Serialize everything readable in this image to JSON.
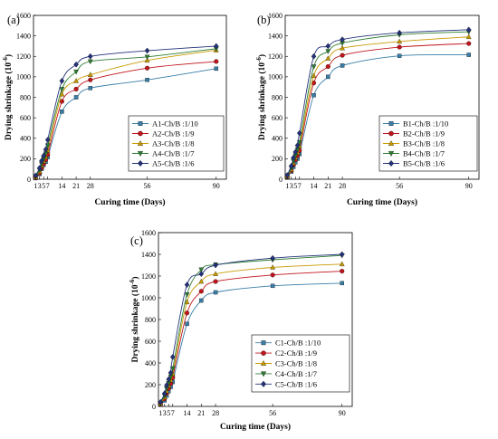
{
  "colors": {
    "series_1": "#3a7ea8",
    "series_2": "#c0141c",
    "series_3": "#c89a00",
    "series_4": "#2e7d32",
    "series_5": "#23327a"
  },
  "markers": [
    "square",
    "circle",
    "triangle-up",
    "triangle-down",
    "diamond"
  ],
  "chart_data": [
    {
      "type": "line",
      "panel_label": "(a)",
      "xlabel": "Curing time (Days)",
      "ylabel": "Drying shrinkage (10",
      "ylabel_sup": "-6",
      "ylabel_end": ")",
      "xlim": [
        0,
        95
      ],
      "ylim": [
        0,
        1600
      ],
      "xticks": [
        1,
        3,
        5,
        7,
        14,
        21,
        28,
        56,
        90
      ],
      "yticks": [
        0,
        200,
        400,
        600,
        800,
        1000,
        1200,
        1400,
        1600
      ],
      "legend_position": "lower-right",
      "x": [
        1,
        3,
        4,
        5,
        6,
        7,
        14,
        21,
        28,
        56,
        90
      ],
      "series": [
        {
          "name": "A1-Ch/B :1/10",
          "values": [
            10,
            50,
            100,
            140,
            170,
            215,
            660,
            800,
            890,
            970,
            1080
          ]
        },
        {
          "name": "A2-Ch/B :1/9",
          "values": [
            15,
            60,
            110,
            150,
            190,
            240,
            760,
            880,
            970,
            1085,
            1150
          ]
        },
        {
          "name": "A3-Ch/B :1/8",
          "values": [
            20,
            75,
            135,
            175,
            215,
            280,
            830,
            960,
            1020,
            1160,
            1260
          ]
        },
        {
          "name": "A4-Ch/B :1/7",
          "values": [
            28,
            90,
            150,
            200,
            250,
            330,
            880,
            1050,
            1150,
            1195,
            1275
          ]
        },
        {
          "name": "A5-Ch/B :1/6",
          "values": [
            35,
            110,
            180,
            230,
            290,
            385,
            960,
            1120,
            1200,
            1255,
            1300
          ]
        }
      ]
    },
    {
      "type": "line",
      "panel_label": "(b)",
      "xlabel": "Curing time (Days)",
      "ylabel": "Drying shrinkage (10",
      "ylabel_sup": "-6",
      "ylabel_end": ")",
      "xlim": [
        0,
        95
      ],
      "ylim": [
        0,
        1600
      ],
      "xticks": [
        1,
        3,
        5,
        7,
        14,
        21,
        28,
        56,
        90
      ],
      "yticks": [
        0,
        200,
        400,
        600,
        800,
        1000,
        1200,
        1400,
        1600
      ],
      "legend_position": "lower-right",
      "x": [
        1,
        3,
        4,
        5,
        6,
        7,
        14,
        21,
        28,
        56,
        90
      ],
      "series": [
        {
          "name": "B1-Ch/B :1/10",
          "values": [
            20,
            75,
            120,
            165,
            200,
            245,
            820,
            1000,
            1110,
            1205,
            1215
          ]
        },
        {
          "name": "B2-Ch/B :1/9",
          "values": [
            25,
            85,
            140,
            190,
            230,
            280,
            940,
            1100,
            1210,
            1290,
            1325
          ]
        },
        {
          "name": "B3-Ch/B :1/8",
          "values": [
            30,
            95,
            160,
            210,
            260,
            320,
            1010,
            1180,
            1280,
            1345,
            1390
          ]
        },
        {
          "name": "B4-Ch/B :1/7",
          "values": [
            35,
            110,
            180,
            230,
            290,
            360,
            1100,
            1250,
            1330,
            1410,
            1440
          ]
        },
        {
          "name": "B5-Ch/B :1/6",
          "values": [
            40,
            130,
            210,
            265,
            330,
            450,
            1200,
            1300,
            1365,
            1430,
            1460
          ]
        }
      ]
    },
    {
      "type": "line",
      "panel_label": "(c)",
      "xlabel": "Curing time (Days)",
      "ylabel": "Drying shrinkage (10",
      "ylabel_sup": "-6",
      "ylabel_end": ")",
      "xlim": [
        0,
        95
      ],
      "ylim": [
        0,
        1600
      ],
      "xticks": [
        1,
        3,
        5,
        7,
        14,
        21,
        28,
        56,
        90
      ],
      "yticks": [
        0,
        200,
        400,
        600,
        800,
        1000,
        1200,
        1400,
        1600
      ],
      "legend_position": "lower-right",
      "x": [
        1,
        3,
        4,
        5,
        6,
        7,
        14,
        21,
        28,
        56,
        90
      ],
      "series": [
        {
          "name": "C1-Ch/B :1/10",
          "values": [
            15,
            55,
            100,
            140,
            180,
            225,
            760,
            975,
            1050,
            1110,
            1135
          ]
        },
        {
          "name": "C2-Ch/B :1/9",
          "values": [
            20,
            70,
            120,
            165,
            210,
            265,
            860,
            1060,
            1150,
            1210,
            1245
          ]
        },
        {
          "name": "C3-Ch/B :1/8",
          "values": [
            25,
            85,
            140,
            190,
            240,
            300,
            960,
            1150,
            1220,
            1280,
            1310
          ]
        },
        {
          "name": "C4-Ch/B :1/7",
          "values": [
            30,
            100,
            165,
            215,
            275,
            350,
            1030,
            1260,
            1305,
            1350,
            1390
          ]
        },
        {
          "name": "C5-Ch/B :1/6",
          "values": [
            40,
            120,
            195,
            250,
            310,
            455,
            1120,
            1220,
            1300,
            1365,
            1400
          ]
        }
      ]
    }
  ]
}
